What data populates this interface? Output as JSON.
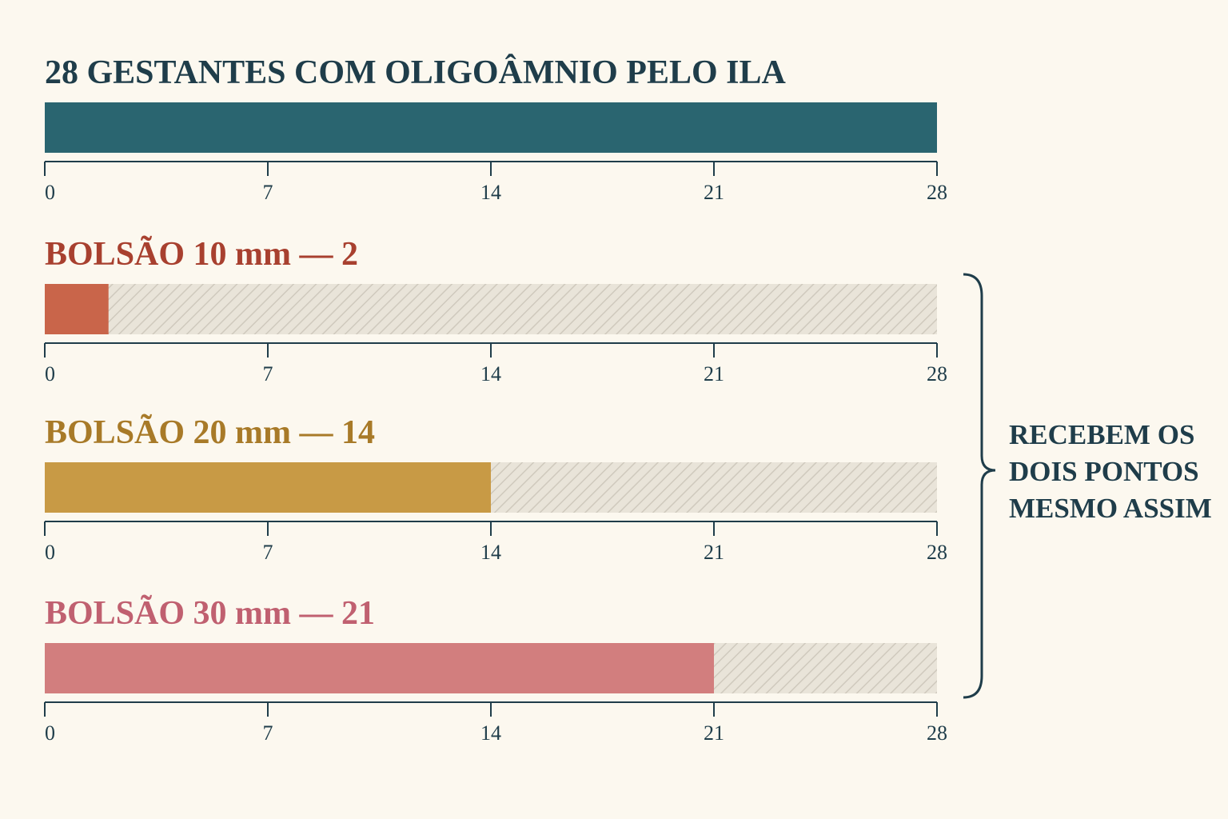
{
  "chart_data": [
    {
      "type": "bar",
      "title": "28 GESTANTES COM OLIGOÂMNIO PELO ILA",
      "title_color": "#1f3d4a",
      "values": [
        28
      ],
      "color": "#2a6570",
      "xlim": [
        0,
        28
      ],
      "xticks": [
        0,
        7,
        14,
        21,
        28
      ],
      "hatched_track": false
    },
    {
      "type": "bar",
      "title": "BOLSÃO 10 mm — 2",
      "title_color": "#a8402f",
      "values": [
        2
      ],
      "color": "#c9654a",
      "xlim": [
        0,
        28
      ],
      "xticks": [
        0,
        7,
        14,
        21,
        28
      ],
      "hatched_track": true
    },
    {
      "type": "bar",
      "title": "BOLSÃO 20 mm — 14",
      "title_color": "#a87a28",
      "values": [
        14
      ],
      "color": "#c89a45",
      "xlim": [
        0,
        28
      ],
      "xticks": [
        0,
        7,
        14,
        21,
        28
      ],
      "hatched_track": true
    },
    {
      "type": "bar",
      "title": "BOLSÃO 30 mm — 21",
      "title_color": "#c06070",
      "values": [
        21
      ],
      "color": "#d27e7e",
      "xlim": [
        0,
        28
      ],
      "xticks": [
        0,
        7,
        14,
        21,
        28
      ],
      "hatched_track": true
    }
  ],
  "annotation": [
    "RECEBEM OS",
    "DOIS PONTOS",
    "MESMO ASSIM"
  ]
}
